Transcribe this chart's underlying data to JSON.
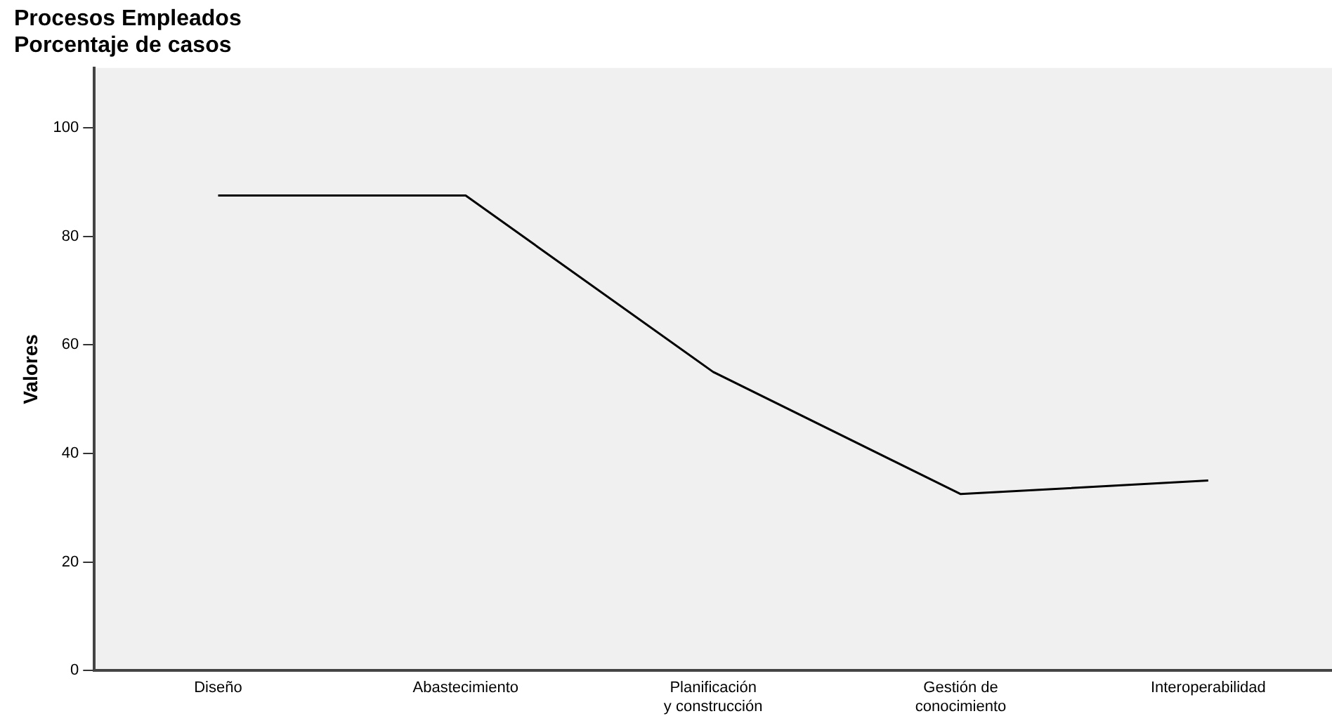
{
  "chart_data": {
    "type": "line",
    "title": "Procesos Empleados",
    "subtitle": "Porcentaje de casos",
    "ylabel": "Valores",
    "categories": [
      "Diseño",
      "Abastecimiento",
      "Planificación y construcción",
      "Gestión de conocimiento",
      "Interoperabilidad"
    ],
    "values": [
      87.5,
      87.5,
      55,
      32.5,
      35
    ],
    "color": "#000000",
    "ylim": [
      0,
      111
    ],
    "yticks": [
      0,
      20,
      40,
      60,
      80,
      100
    ],
    "grid": false,
    "legend": false,
    "marker": "none",
    "line_style": "solid"
  }
}
